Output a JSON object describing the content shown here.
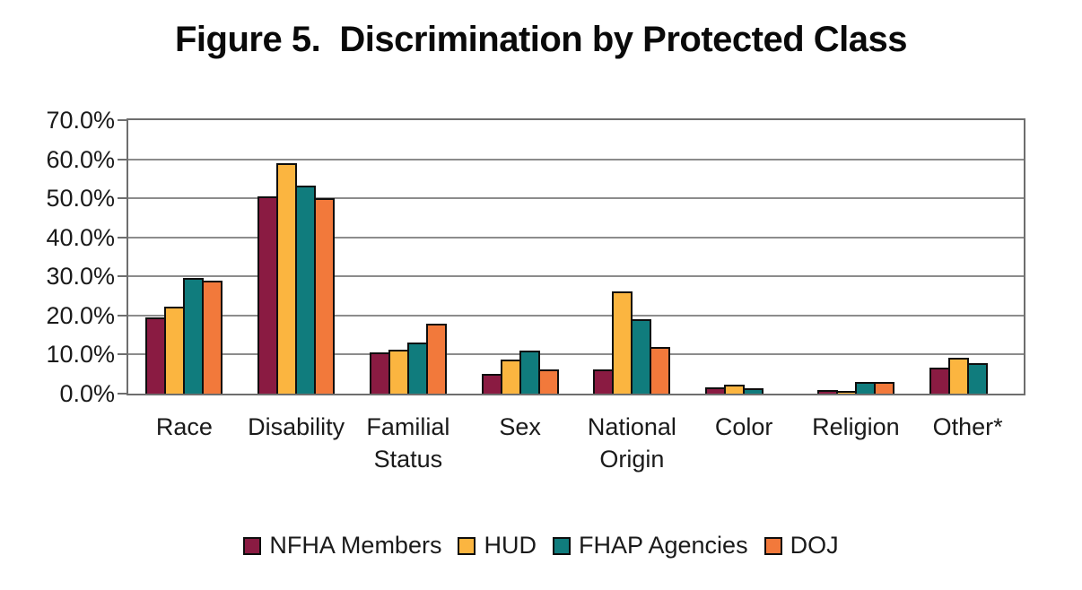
{
  "title": "Figure 5.  Discrimination by Protected Class",
  "chart_data": {
    "type": "bar",
    "title": "Figure 5.  Discrimination by Protected Class",
    "categories": [
      "Race",
      "Disability",
      "Familial Status",
      "Sex",
      "National Origin",
      "Color",
      "Religion",
      "Other*"
    ],
    "series": [
      {
        "name": "NFHA Members",
        "color": "#8A1B42",
        "values": [
          19.5,
          50.5,
          10.5,
          5.0,
          6.3,
          1.5,
          1.0,
          6.6
        ]
      },
      {
        "name": "HUD",
        "color": "#FBB540",
        "values": [
          22.3,
          59.0,
          11.2,
          8.7,
          26.2,
          2.4,
          0.8,
          9.2
        ]
      },
      {
        "name": "FHAP Agencies",
        "color": "#107C7D",
        "values": [
          29.5,
          53.2,
          13.0,
          11.0,
          19.0,
          1.4,
          2.9,
          7.7
        ]
      },
      {
        "name": "DOJ",
        "color": "#F2793B",
        "values": [
          29.0,
          50.0,
          18.0,
          6.2,
          11.9,
          0.0,
          2.9,
          0.0
        ]
      }
    ],
    "xlabel": "",
    "ylabel": "",
    "ylim": [
      0,
      70
    ],
    "ytick_step": 10,
    "ytick_labels": [
      "0.0%",
      "10.0%",
      "20.0%",
      "30.0%",
      "40.0%",
      "50.0%",
      "60.0%",
      "70.0%"
    ],
    "grid": true,
    "legend_position": "bottom",
    "bar_border_color": "#0e0e0e",
    "gridline_color": "#8c8c8c"
  }
}
